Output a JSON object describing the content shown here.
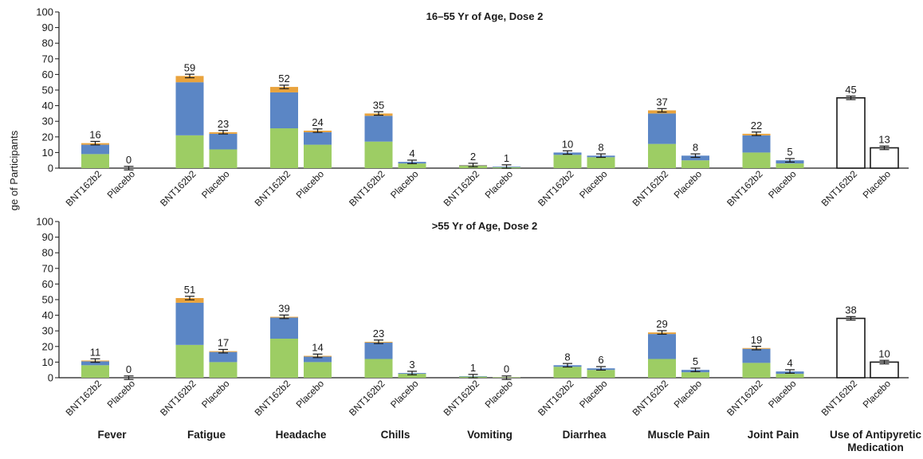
{
  "colors": {
    "mild": "#9dcd64",
    "moderate": "#5b86c5",
    "severe": "#e9a33d",
    "axis": "#1a1a1a",
    "antipyretic_fill": "#ffffff"
  },
  "chart_data": {
    "type": "bar",
    "stacked": true,
    "ylabel": "ge of Participants",
    "ylim": [
      0,
      100
    ],
    "yticks": [
      0,
      10,
      20,
      30,
      40,
      50,
      60,
      70,
      80,
      90,
      100
    ],
    "groups": [
      "BNT162b2",
      "Placebo"
    ],
    "categories": [
      "Fever",
      "Fatigue",
      "Headache",
      "Chills",
      "Vomiting",
      "Diarrhea",
      "Muscle Pain",
      "Joint Pain",
      "Use of Antipyretic Medication"
    ],
    "panels": [
      {
        "title": "16–55 Yr of Age, Dose 2",
        "bars": [
          {
            "category": "Fever",
            "group": "BNT162b2",
            "total": 16,
            "label": "16",
            "segments": {
              "mild": 9,
              "moderate": 6,
              "severe": 1
            }
          },
          {
            "category": "Fever",
            "group": "Placebo",
            "total": 0,
            "label": "0",
            "segments": {
              "mild": 0,
              "moderate": 0,
              "severe": 0
            }
          },
          {
            "category": "Fatigue",
            "group": "BNT162b2",
            "total": 59,
            "label": "59",
            "segments": {
              "mild": 21,
              "moderate": 34,
              "severe": 4
            }
          },
          {
            "category": "Fatigue",
            "group": "Placebo",
            "total": 23,
            "label": "23",
            "segments": {
              "mild": 12,
              "moderate": 10,
              "severe": 1
            }
          },
          {
            "category": "Headache",
            "group": "BNT162b2",
            "total": 52,
            "label": "52",
            "segments": {
              "mild": 25.5,
              "moderate": 23,
              "severe": 3.5
            }
          },
          {
            "category": "Headache",
            "group": "Placebo",
            "total": 24,
            "label": "24",
            "segments": {
              "mild": 15,
              "moderate": 8,
              "severe": 1
            }
          },
          {
            "category": "Chills",
            "group": "BNT162b2",
            "total": 35,
            "label": "35",
            "segments": {
              "mild": 17,
              "moderate": 16.5,
              "severe": 1.5
            }
          },
          {
            "category": "Chills",
            "group": "Placebo",
            "total": 4,
            "label": "4",
            "segments": {
              "mild": 3,
              "moderate": 1,
              "severe": 0
            }
          },
          {
            "category": "Vomiting",
            "group": "BNT162b2",
            "total": 2,
            "label": "2",
            "segments": {
              "mild": 1.5,
              "moderate": 0.3,
              "severe": 0.2
            }
          },
          {
            "category": "Vomiting",
            "group": "Placebo",
            "total": 1,
            "label": "1",
            "segments": {
              "mild": 0.6,
              "moderate": 0.4,
              "severe": 0
            }
          },
          {
            "category": "Diarrhea",
            "group": "BNT162b2",
            "total": 10,
            "label": "10",
            "segments": {
              "mild": 8.5,
              "moderate": 1.5,
              "severe": 0
            }
          },
          {
            "category": "Diarrhea",
            "group": "Placebo",
            "total": 8,
            "label": "8",
            "segments": {
              "mild": 7,
              "moderate": 1,
              "severe": 0
            }
          },
          {
            "category": "Muscle Pain",
            "group": "BNT162b2",
            "total": 37,
            "label": "37",
            "segments": {
              "mild": 15.5,
              "moderate": 19.5,
              "severe": 2
            }
          },
          {
            "category": "Muscle Pain",
            "group": "Placebo",
            "total": 8,
            "label": "8",
            "segments": {
              "mild": 5,
              "moderate": 3,
              "severe": 0
            }
          },
          {
            "category": "Joint Pain",
            "group": "BNT162b2",
            "total": 22,
            "label": "22",
            "segments": {
              "mild": 10,
              "moderate": 11,
              "severe": 1
            }
          },
          {
            "category": "Joint Pain",
            "group": "Placebo",
            "total": 5,
            "label": "5",
            "segments": {
              "mild": 3,
              "moderate": 2,
              "severe": 0
            }
          },
          {
            "category": "Use of Antipyretic Medication",
            "group": "BNT162b2",
            "total": 45,
            "label": "45",
            "segments": {}
          },
          {
            "category": "Use of Antipyretic Medication",
            "group": "Placebo",
            "total": 13,
            "label": "13",
            "segments": {}
          }
        ]
      },
      {
        "title": ">55 Yr of Age, Dose 2",
        "bars": [
          {
            "category": "Fever",
            "group": "BNT162b2",
            "total": 11,
            "label": "11",
            "segments": {
              "mild": 8,
              "moderate": 2.5,
              "severe": 0.5
            }
          },
          {
            "category": "Fever",
            "group": "Placebo",
            "total": 0,
            "label": "0",
            "segments": {
              "mild": 0,
              "moderate": 0,
              "severe": 0
            }
          },
          {
            "category": "Fatigue",
            "group": "BNT162b2",
            "total": 51,
            "label": "51",
            "segments": {
              "mild": 21,
              "moderate": 27,
              "severe": 3
            }
          },
          {
            "category": "Fatigue",
            "group": "Placebo",
            "total": 17,
            "label": "17",
            "segments": {
              "mild": 10,
              "moderate": 6.5,
              "severe": 0.5
            }
          },
          {
            "category": "Headache",
            "group": "BNT162b2",
            "total": 39,
            "label": "39",
            "segments": {
              "mild": 25,
              "moderate": 13.5,
              "severe": 0.5
            }
          },
          {
            "category": "Headache",
            "group": "Placebo",
            "total": 14,
            "label": "14",
            "segments": {
              "mild": 10,
              "moderate": 3.5,
              "severe": 0.5
            }
          },
          {
            "category": "Chills",
            "group": "BNT162b2",
            "total": 23,
            "label": "23",
            "segments": {
              "mild": 12,
              "moderate": 10.5,
              "severe": 0.5
            }
          },
          {
            "category": "Chills",
            "group": "Placebo",
            "total": 3,
            "label": "3",
            "segments": {
              "mild": 2.5,
              "moderate": 0.5,
              "severe": 0
            }
          },
          {
            "category": "Vomiting",
            "group": "BNT162b2",
            "total": 1,
            "label": "1",
            "segments": {
              "mild": 0.7,
              "moderate": 0.3,
              "severe": 0
            }
          },
          {
            "category": "Vomiting",
            "group": "Placebo",
            "total": 0,
            "label": "0",
            "segments": {
              "mild": 0.3,
              "moderate": 0,
              "severe": 0
            }
          },
          {
            "category": "Diarrhea",
            "group": "BNT162b2",
            "total": 8,
            "label": "8",
            "segments": {
              "mild": 7,
              "moderate": 1,
              "severe": 0
            }
          },
          {
            "category": "Diarrhea",
            "group": "Placebo",
            "total": 6,
            "label": "6",
            "segments": {
              "mild": 5,
              "moderate": 1,
              "severe": 0
            }
          },
          {
            "category": "Muscle Pain",
            "group": "BNT162b2",
            "total": 29,
            "label": "29",
            "segments": {
              "mild": 12,
              "moderate": 16,
              "severe": 1
            }
          },
          {
            "category": "Muscle Pain",
            "group": "Placebo",
            "total": 5,
            "label": "5",
            "segments": {
              "mild": 3.5,
              "moderate": 1.5,
              "severe": 0
            }
          },
          {
            "category": "Joint Pain",
            "group": "BNT162b2",
            "total": 19,
            "label": "19",
            "segments": {
              "mild": 9.5,
              "moderate": 9,
              "severe": 0.5
            }
          },
          {
            "category": "Joint Pain",
            "group": "Placebo",
            "total": 4,
            "label": "4",
            "segments": {
              "mild": 2.5,
              "moderate": 1.5,
              "severe": 0
            }
          },
          {
            "category": "Use of Antipyretic Medication",
            "group": "BNT162b2",
            "total": 38,
            "label": "38",
            "segments": {}
          },
          {
            "category": "Use of Antipyretic Medication",
            "group": "Placebo",
            "total": 10,
            "label": "10",
            "segments": {}
          }
        ]
      }
    ]
  }
}
